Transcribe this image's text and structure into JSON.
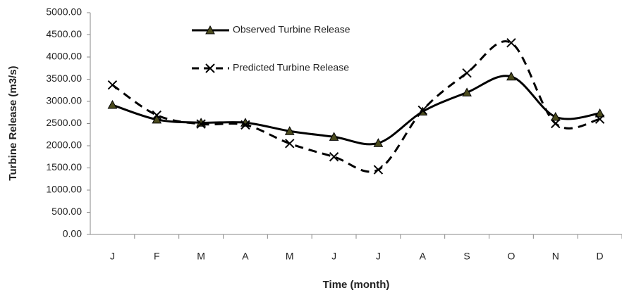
{
  "chart_data": {
    "type": "line",
    "x_label": "Time (month)",
    "y_label": "Turbine Release (m3/s)",
    "categories": [
      "J",
      "F",
      "M",
      "A",
      "M",
      "J",
      "J",
      "A",
      "S",
      "O",
      "N",
      "D"
    ],
    "series": [
      {
        "name": "Observed Turbine Release",
        "color": "#000000",
        "marker": "triangle",
        "dash": "solid",
        "values": [
          2920,
          2590,
          2520,
          2520,
          2330,
          2200,
          2060,
          2770,
          3200,
          3560,
          2650,
          2730
        ]
      },
      {
        "name": "Predicted Turbine Release",
        "color": "#000000",
        "marker": "x",
        "dash": "dashed",
        "values": [
          3370,
          2690,
          2490,
          2470,
          2050,
          1750,
          1460,
          2800,
          3640,
          4320,
          2500,
          2600
        ]
      }
    ],
    "ylim": [
      0,
      5000
    ],
    "yticks": [
      {
        "value": 0,
        "label": "0.00"
      },
      {
        "value": 500,
        "label": "500.00"
      },
      {
        "value": 1000,
        "label": "1000.00"
      },
      {
        "value": 1500,
        "label": "1500.00"
      },
      {
        "value": 2000,
        "label": "2000.00"
      },
      {
        "value": 2500,
        "label": "2500.00"
      },
      {
        "value": 3000,
        "label": "3000.00"
      },
      {
        "value": 3500,
        "label": "3500.00"
      },
      {
        "value": 4000,
        "label": "4000.00"
      },
      {
        "value": 4500,
        "label": "4500.00"
      },
      {
        "value": 5000,
        "label": "5000.00"
      }
    ],
    "grid": false
  }
}
